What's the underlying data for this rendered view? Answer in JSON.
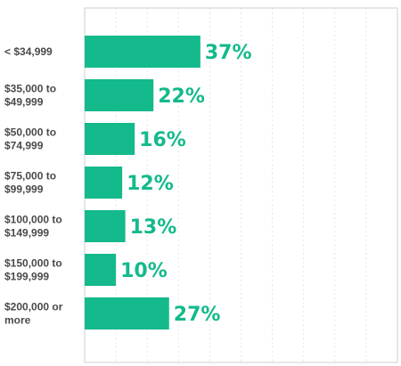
{
  "chart_data": {
    "type": "bar",
    "orientation": "horizontal",
    "categories": [
      [
        "< $34,999"
      ],
      [
        "$35,000 to",
        "$49,999"
      ],
      [
        "$50,000 to",
        "$74,999"
      ],
      [
        "$75,000 to",
        "$99,999"
      ],
      [
        "$100,000 to",
        "$149,999"
      ],
      [
        "$150,000 to",
        "$199,999"
      ],
      [
        "$200,000 or",
        "more"
      ]
    ],
    "values": [
      37,
      22,
      16,
      12,
      13,
      10,
      27
    ],
    "value_labels": [
      "37%",
      "22%",
      "16%",
      "12%",
      "13%",
      "10%",
      "27%"
    ],
    "title": "",
    "xlabel": "",
    "ylabel": "",
    "xlim": [
      0,
      100
    ],
    "grid": "vertical dotted",
    "legend": "none",
    "bar_color": "#14b98c",
    "label_color": "#14b98c"
  }
}
